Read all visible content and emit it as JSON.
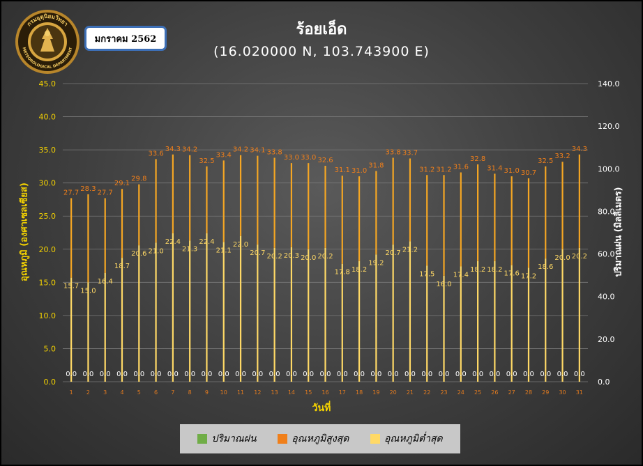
{
  "header": {
    "month": "มกราคม 2562",
    "title": "ร้อยเอ็ด",
    "coordinates": "(16.020000 N, 103.743900 E)"
  },
  "logo": {
    "text_top": "กรมอุตุนิยมวิทยา",
    "text_bottom": "METEOROLOGICAL DEPARTMENT"
  },
  "chart_data": {
    "type": "bar",
    "xlabel": "วันที่",
    "ylabel": "อุณหภูมิ (องศาเซลเซียส)",
    "y2label": "ปริมาณฝน (มิลลิเมตร)",
    "ylim": [
      0,
      45
    ],
    "y2lim": [
      0,
      140
    ],
    "yticks": [
      "0.0",
      "5.0",
      "10.0",
      "15.0",
      "20.0",
      "25.0",
      "30.0",
      "35.0",
      "40.0",
      "45.0"
    ],
    "y2ticks": [
      "0.0",
      "20.0",
      "40.0",
      "60.0",
      "80.0",
      "100.0",
      "120.0",
      "140.0"
    ],
    "categories": [
      "1",
      "2",
      "3",
      "4",
      "5",
      "6",
      "7",
      "8",
      "9",
      "10",
      "11",
      "12",
      "13",
      "14",
      "15",
      "16",
      "17",
      "18",
      "19",
      "20",
      "21",
      "22",
      "23",
      "24",
      "25",
      "26",
      "27",
      "28",
      "29",
      "30",
      "31"
    ],
    "series": [
      {
        "name": "ปริมาณฝน",
        "color": "#70ad47",
        "axis": "right",
        "values": [
          0,
          0,
          0,
          0,
          0,
          0,
          0,
          0,
          0,
          0,
          0,
          0,
          0,
          0,
          0,
          0,
          0,
          0,
          0,
          0,
          0,
          0,
          0,
          0,
          0,
          0,
          0,
          0,
          0,
          0,
          0
        ]
      },
      {
        "name": "อุณหภูมิสูงสุด",
        "color": "#f07f1a",
        "axis": "left",
        "values": [
          27.7,
          28.3,
          27.7,
          29.1,
          29.8,
          33.6,
          34.3,
          34.2,
          32.5,
          33.4,
          34.2,
          34.1,
          33.8,
          33.0,
          33.0,
          32.6,
          31.1,
          31.0,
          31.8,
          33.8,
          33.7,
          31.2,
          31.2,
          31.6,
          32.8,
          31.4,
          31.0,
          30.7,
          32.5,
          33.2,
          34.3
        ]
      },
      {
        "name": "อุณหภูมิต่ำสุด",
        "color": "#ffd966",
        "axis": "left",
        "values": [
          15.7,
          15.0,
          16.4,
          18.7,
          20.6,
          21.0,
          22.4,
          21.3,
          22.4,
          21.1,
          22.0,
          20.7,
          20.2,
          20.3,
          20.0,
          20.2,
          17.8,
          18.2,
          19.2,
          20.7,
          21.2,
          17.5,
          16.0,
          17.4,
          18.2,
          18.2,
          17.6,
          17.2,
          18.6,
          20.0,
          20.2
        ]
      }
    ],
    "legend_position": "bottom",
    "grid": true
  }
}
